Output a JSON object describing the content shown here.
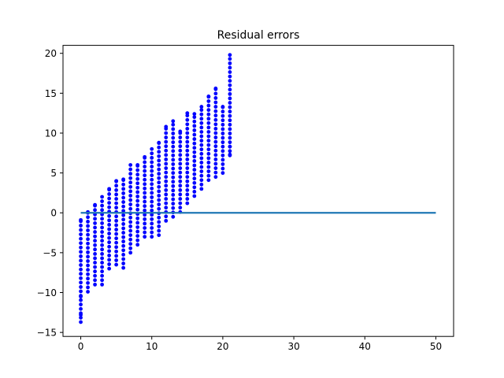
{
  "chart_data": {
    "type": "scatter",
    "title": "Residual errors",
    "xlabel": "",
    "ylabel": "",
    "xlim": [
      -2.5,
      52.5
    ],
    "ylim": [
      -15.5,
      21.0
    ],
    "xticks": [
      0,
      10,
      20,
      30,
      40,
      50
    ],
    "yticks": [
      -15,
      -10,
      -5,
      0,
      5,
      10,
      15,
      20
    ],
    "grid": false,
    "point_color": "#0000ff",
    "line_color": "#1f77b4",
    "reference_line": {
      "y": 0,
      "x_range": [
        0,
        50
      ]
    },
    "columns": [
      {
        "x": 0,
        "ymin": -13.7,
        "ymax": -0.9,
        "extra": [
          -12.8,
          -10.5
        ]
      },
      {
        "x": 1,
        "ymin": -9.9,
        "ymax": 0.1,
        "extra": []
      },
      {
        "x": 2,
        "ymin": -9.0,
        "ymax": 1.0,
        "extra": []
      },
      {
        "x": 3,
        "ymin": -9.0,
        "ymax": 2.0,
        "extra": []
      },
      {
        "x": 4,
        "ymin": -7.0,
        "ymax": 3.0,
        "extra": []
      },
      {
        "x": 5,
        "ymin": -6.5,
        "ymax": 4.0,
        "extra": []
      },
      {
        "x": 6,
        "ymin": -6.9,
        "ymax": 4.2,
        "extra": []
      },
      {
        "x": 7,
        "ymin": -5.0,
        "ymax": 6.0,
        "extra": []
      },
      {
        "x": 8,
        "ymin": -4.0,
        "ymax": 6.0,
        "extra": []
      },
      {
        "x": 9,
        "ymin": -3.0,
        "ymax": 7.0,
        "extra": []
      },
      {
        "x": 10,
        "ymin": -3.0,
        "ymax": 8.0,
        "extra": []
      },
      {
        "x": 11,
        "ymin": -2.8,
        "ymax": 8.8,
        "extra": []
      },
      {
        "x": 12,
        "ymin": -1.0,
        "ymax": 10.8,
        "extra": []
      },
      {
        "x": 13,
        "ymin": -0.5,
        "ymax": 11.5,
        "extra": []
      },
      {
        "x": 14,
        "ymin": 0.1,
        "ymax": 10.2,
        "extra": []
      },
      {
        "x": 15,
        "ymin": 1.2,
        "ymax": 12.5,
        "extra": []
      },
      {
        "x": 16,
        "ymin": 2.1,
        "ymax": 12.4,
        "extra": []
      },
      {
        "x": 17,
        "ymin": 3.0,
        "ymax": 13.3,
        "extra": []
      },
      {
        "x": 18,
        "ymin": 4.1,
        "ymax": 14.6,
        "extra": []
      },
      {
        "x": 19,
        "ymin": 4.5,
        "ymax": 15.6,
        "extra": []
      },
      {
        "x": 20,
        "ymin": 5.0,
        "ymax": 13.3,
        "extra": []
      },
      {
        "x": 21,
        "ymin": 7.2,
        "ymax": 19.8,
        "extra": [
          8.3,
          7.3
        ]
      }
    ]
  }
}
